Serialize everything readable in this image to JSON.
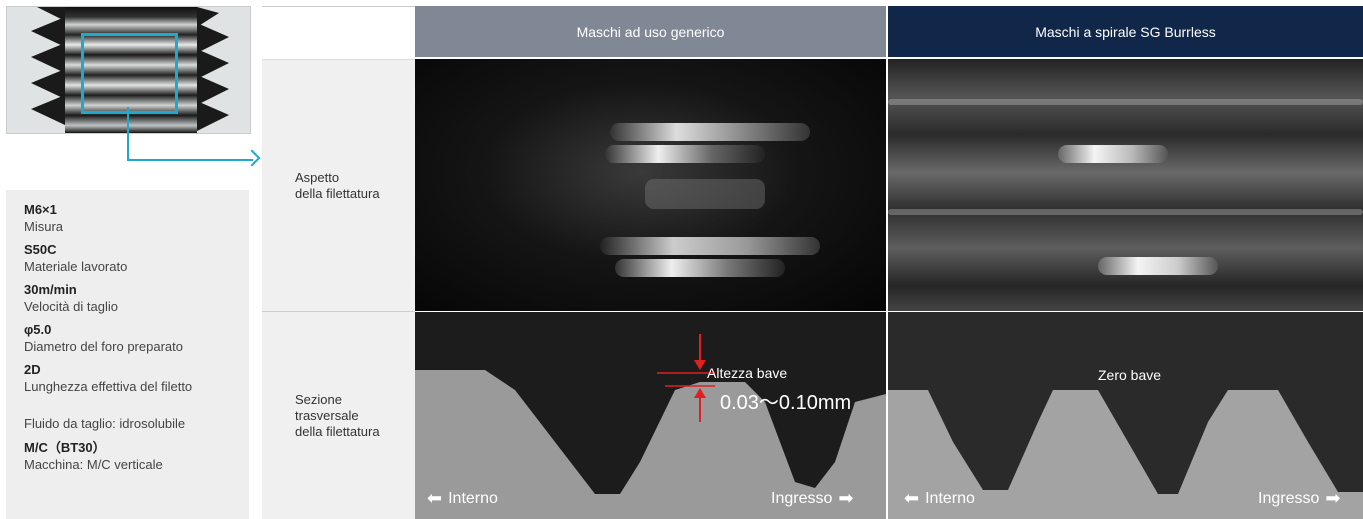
{
  "specs": [
    {
      "value": "M6×1",
      "label": "Misura"
    },
    {
      "value": "S50C",
      "label": "Materiale lavorato"
    },
    {
      "value": "30m/min",
      "label": "Velocità di taglio"
    },
    {
      "value": "φ5.0",
      "label": "Diametro del foro preparato"
    },
    {
      "value": "2D",
      "label": "Lunghezza effettiva del filetto"
    }
  ],
  "fluid": "Fluido da taglio: idrosolubile",
  "machine": {
    "value": "M/C（BT30）",
    "label": "Macchina: M/C verticale"
  },
  "columns": {
    "general": "Maschi ad uso generico",
    "sg": "Maschi a spirale SG Burrless"
  },
  "rows": {
    "appearance": [
      "Aspetto",
      "della filettatura"
    ],
    "section": [
      "Sezione",
      "trasversale",
      "della filettatura"
    ]
  },
  "annotations": {
    "burr_height_label": "Altezza bave",
    "burr_height_value": "0.03～0.10mm",
    "zero_burr": "Zero bave",
    "inner": "Interno",
    "entry": "Ingresso"
  },
  "colors": {
    "accent": "#1ea9d0",
    "header_general": "#7f8894",
    "header_sg": "#10274a",
    "marker_red": "#e02020"
  }
}
